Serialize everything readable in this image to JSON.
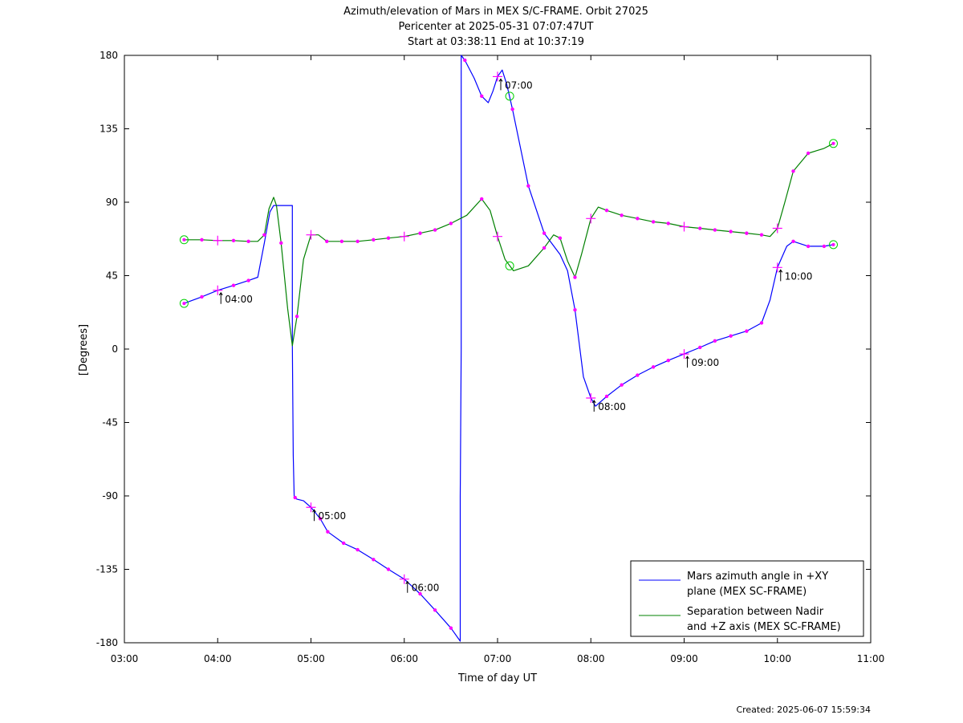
{
  "title": {
    "line1": "Azimuth/elevation of Mars in MEX S/C-FRAME.  Orbit 27025",
    "line2": "Pericenter at 2025-05-31 07:07:47UT",
    "line3": "Start at 03:38:11 End at 10:37:19"
  },
  "footer": "Created: 2025-06-07 15:59:34",
  "chart_data": {
    "type": "line",
    "xlabel": "Time of day UT",
    "ylabel": "[Degrees]",
    "x_unit": "hours UT",
    "xlim": [
      3,
      11
    ],
    "ylim": [
      -180,
      180
    ],
    "x_ticks": [
      3,
      4,
      5,
      6,
      7,
      8,
      9,
      10,
      11
    ],
    "x_tick_labels": [
      "03:00",
      "04:00",
      "05:00",
      "06:00",
      "07:00",
      "08:00",
      "09:00",
      "10:00",
      "11:00"
    ],
    "y_ticks": [
      180,
      135,
      90,
      45,
      0,
      -45,
      -90,
      -135,
      -180
    ],
    "y_tick_labels": [
      "180",
      "135",
      "90",
      "45",
      "0",
      "-45",
      "-90",
      "-135",
      "-180"
    ],
    "grid": false,
    "legend_position": "bottom-right",
    "series": [
      {
        "name": "Mars azimuth angle in +XY plane (MEX SC-FRAME)",
        "legend_lines": [
          "Mars azimuth angle in +XY",
          "plane (MEX SC-FRAME)"
        ],
        "color": "#0000ff",
        "points": [
          [
            3.64,
            28
          ],
          [
            3.83,
            32
          ],
          [
            4.0,
            36
          ],
          [
            4.17,
            39
          ],
          [
            4.33,
            42
          ],
          [
            4.43,
            44
          ],
          [
            4.5,
            65
          ],
          [
            4.56,
            84
          ],
          [
            4.6,
            88
          ],
          [
            4.8,
            88
          ],
          [
            4.8,
            3
          ],
          [
            4.81,
            -65
          ],
          [
            4.82,
            -91
          ],
          [
            4.85,
            -92
          ],
          [
            4.92,
            -93
          ],
          [
            5.0,
            -97
          ],
          [
            5.1,
            -104
          ],
          [
            5.18,
            -112
          ],
          [
            5.35,
            -119
          ],
          [
            5.5,
            -123
          ],
          [
            5.67,
            -129
          ],
          [
            5.83,
            -135
          ],
          [
            6.0,
            -141
          ],
          [
            6.17,
            -150
          ],
          [
            6.33,
            -160
          ],
          [
            6.5,
            -171
          ],
          [
            6.6,
            -179
          ],
          [
            6.6,
            -90
          ],
          [
            6.61,
            0
          ],
          [
            6.61,
            90
          ],
          [
            6.61,
            180
          ],
          [
            6.65,
            177
          ],
          [
            6.75,
            166
          ],
          [
            6.83,
            155
          ],
          [
            6.9,
            151
          ],
          [
            6.95,
            158
          ],
          [
            7.0,
            167
          ],
          [
            7.05,
            171
          ],
          [
            7.1,
            162
          ],
          [
            7.16,
            147
          ],
          [
            7.33,
            100
          ],
          [
            7.5,
            71
          ],
          [
            7.67,
            58
          ],
          [
            7.75,
            48
          ],
          [
            7.83,
            24
          ],
          [
            7.92,
            -17
          ],
          [
            8.0,
            -30
          ],
          [
            8.05,
            -35
          ],
          [
            8.17,
            -29
          ],
          [
            8.33,
            -22
          ],
          [
            8.5,
            -16
          ],
          [
            8.67,
            -11
          ],
          [
            8.83,
            -7
          ],
          [
            9.0,
            -3
          ],
          [
            9.17,
            1
          ],
          [
            9.33,
            5
          ],
          [
            9.5,
            8
          ],
          [
            9.67,
            11
          ],
          [
            9.83,
            16
          ],
          [
            9.92,
            30
          ],
          [
            10.0,
            50
          ],
          [
            10.1,
            63
          ],
          [
            10.17,
            66
          ],
          [
            10.33,
            63
          ],
          [
            10.5,
            63
          ],
          [
            10.6,
            64
          ]
        ],
        "markers": [
          [
            3.83,
            32
          ],
          [
            4.17,
            39
          ],
          [
            4.33,
            42
          ],
          [
            4.83,
            -91
          ],
          [
            5.1,
            -104
          ],
          [
            5.18,
            -112
          ],
          [
            5.35,
            -119
          ],
          [
            5.5,
            -123
          ],
          [
            5.67,
            -129
          ],
          [
            5.83,
            -135
          ],
          [
            6.17,
            -150
          ],
          [
            6.33,
            -160
          ],
          [
            6.5,
            -171
          ],
          [
            6.65,
            177
          ],
          [
            6.83,
            155
          ],
          [
            7.16,
            147
          ],
          [
            7.33,
            100
          ],
          [
            7.5,
            71
          ],
          [
            7.83,
            24
          ],
          [
            8.17,
            -29
          ],
          [
            8.33,
            -22
          ],
          [
            8.5,
            -16
          ],
          [
            8.67,
            -11
          ],
          [
            8.83,
            -7
          ],
          [
            9.17,
            1
          ],
          [
            9.33,
            5
          ],
          [
            9.5,
            8
          ],
          [
            9.67,
            11
          ],
          [
            9.83,
            16
          ],
          [
            10.17,
            66
          ],
          [
            10.33,
            63
          ],
          [
            10.5,
            63
          ]
        ],
        "hour_crosses": [
          [
            4.0,
            36
          ],
          [
            5.0,
            -97
          ],
          [
            6.0,
            -141
          ],
          [
            7.0,
            167
          ],
          [
            8.0,
            -30
          ],
          [
            9.0,
            -3
          ],
          [
            10.0,
            50
          ]
        ],
        "circle_markers": [
          [
            3.64,
            28
          ],
          [
            10.6,
            64
          ]
        ]
      },
      {
        "name": "Separation between Nadir and +Z axis (MEX SC-FRAME)",
        "legend_lines": [
          "Separation between Nadir",
          "and +Z axis (MEX SC-FRAME)"
        ],
        "color": "#008000",
        "points": [
          [
            3.64,
            67
          ],
          [
            3.83,
            67
          ],
          [
            4.0,
            66.5
          ],
          [
            4.17,
            66.5
          ],
          [
            4.33,
            66
          ],
          [
            4.43,
            66
          ],
          [
            4.5,
            70
          ],
          [
            4.55,
            86
          ],
          [
            4.6,
            93
          ],
          [
            4.63,
            88
          ],
          [
            4.68,
            65
          ],
          [
            4.75,
            25
          ],
          [
            4.8,
            2
          ],
          [
            4.85,
            20
          ],
          [
            4.92,
            55
          ],
          [
            5.0,
            70
          ],
          [
            5.08,
            70
          ],
          [
            5.17,
            66
          ],
          [
            5.33,
            66
          ],
          [
            5.5,
            66
          ],
          [
            5.67,
            67
          ],
          [
            5.83,
            68
          ],
          [
            6.0,
            69
          ],
          [
            6.17,
            71
          ],
          [
            6.33,
            73
          ],
          [
            6.5,
            77
          ],
          [
            6.67,
            82
          ],
          [
            6.83,
            92
          ],
          [
            6.92,
            85
          ],
          [
            7.0,
            69
          ],
          [
            7.08,
            55
          ],
          [
            7.17,
            48
          ],
          [
            7.33,
            51
          ],
          [
            7.5,
            62
          ],
          [
            7.6,
            70
          ],
          [
            7.67,
            68
          ],
          [
            7.75,
            54
          ],
          [
            7.83,
            44
          ],
          [
            7.9,
            58
          ],
          [
            8.0,
            80
          ],
          [
            8.08,
            87
          ],
          [
            8.17,
            85
          ],
          [
            8.33,
            82
          ],
          [
            8.5,
            80
          ],
          [
            8.67,
            78
          ],
          [
            8.83,
            77
          ],
          [
            9.0,
            75
          ],
          [
            9.17,
            74
          ],
          [
            9.33,
            73
          ],
          [
            9.5,
            72
          ],
          [
            9.67,
            71
          ],
          [
            9.83,
            70
          ],
          [
            9.92,
            69
          ],
          [
            10.0,
            74
          ],
          [
            10.08,
            90
          ],
          [
            10.17,
            109
          ],
          [
            10.33,
            120
          ],
          [
            10.5,
            123
          ],
          [
            10.6,
            126
          ]
        ],
        "markers": [
          [
            3.83,
            67
          ],
          [
            4.17,
            66.5
          ],
          [
            4.33,
            66
          ],
          [
            4.5,
            70
          ],
          [
            4.68,
            65
          ],
          [
            4.85,
            20
          ],
          [
            5.17,
            66
          ],
          [
            5.33,
            66
          ],
          [
            5.5,
            66
          ],
          [
            5.67,
            67
          ],
          [
            5.83,
            68
          ],
          [
            6.17,
            71
          ],
          [
            6.33,
            73
          ],
          [
            6.5,
            77
          ],
          [
            6.83,
            92
          ],
          [
            7.5,
            62
          ],
          [
            7.67,
            68
          ],
          [
            7.83,
            44
          ],
          [
            8.17,
            85
          ],
          [
            8.33,
            82
          ],
          [
            8.5,
            80
          ],
          [
            8.67,
            78
          ],
          [
            8.83,
            77
          ],
          [
            9.17,
            74
          ],
          [
            9.33,
            73
          ],
          [
            9.5,
            72
          ],
          [
            9.67,
            71
          ],
          [
            9.83,
            70
          ],
          [
            10.17,
            109
          ],
          [
            10.33,
            120
          ]
        ],
        "hour_crosses": [
          [
            4.0,
            66.5
          ],
          [
            5.0,
            70
          ],
          [
            6.0,
            69
          ],
          [
            7.0,
            69
          ],
          [
            8.0,
            80
          ],
          [
            9.0,
            75
          ],
          [
            10.0,
            74
          ]
        ],
        "circle_markers": [
          [
            3.64,
            67
          ],
          [
            10.6,
            126
          ]
        ]
      }
    ],
    "pericenter_circles": [
      [
        7.13,
        155
      ],
      [
        7.13,
        51
      ]
    ],
    "hour_annotations": [
      {
        "label": "04:00",
        "x": 4.0,
        "y": 36
      },
      {
        "label": "05:00",
        "x": 5.0,
        "y": -97
      },
      {
        "label": "06:00",
        "x": 6.0,
        "y": -141
      },
      {
        "label": "07:00",
        "x": 7.0,
        "y": 167
      },
      {
        "label": "08:00",
        "x": 8.0,
        "y": -30
      },
      {
        "label": "09:00",
        "x": 9.0,
        "y": -3
      },
      {
        "label": "10:00",
        "x": 10.0,
        "y": 50
      }
    ]
  }
}
